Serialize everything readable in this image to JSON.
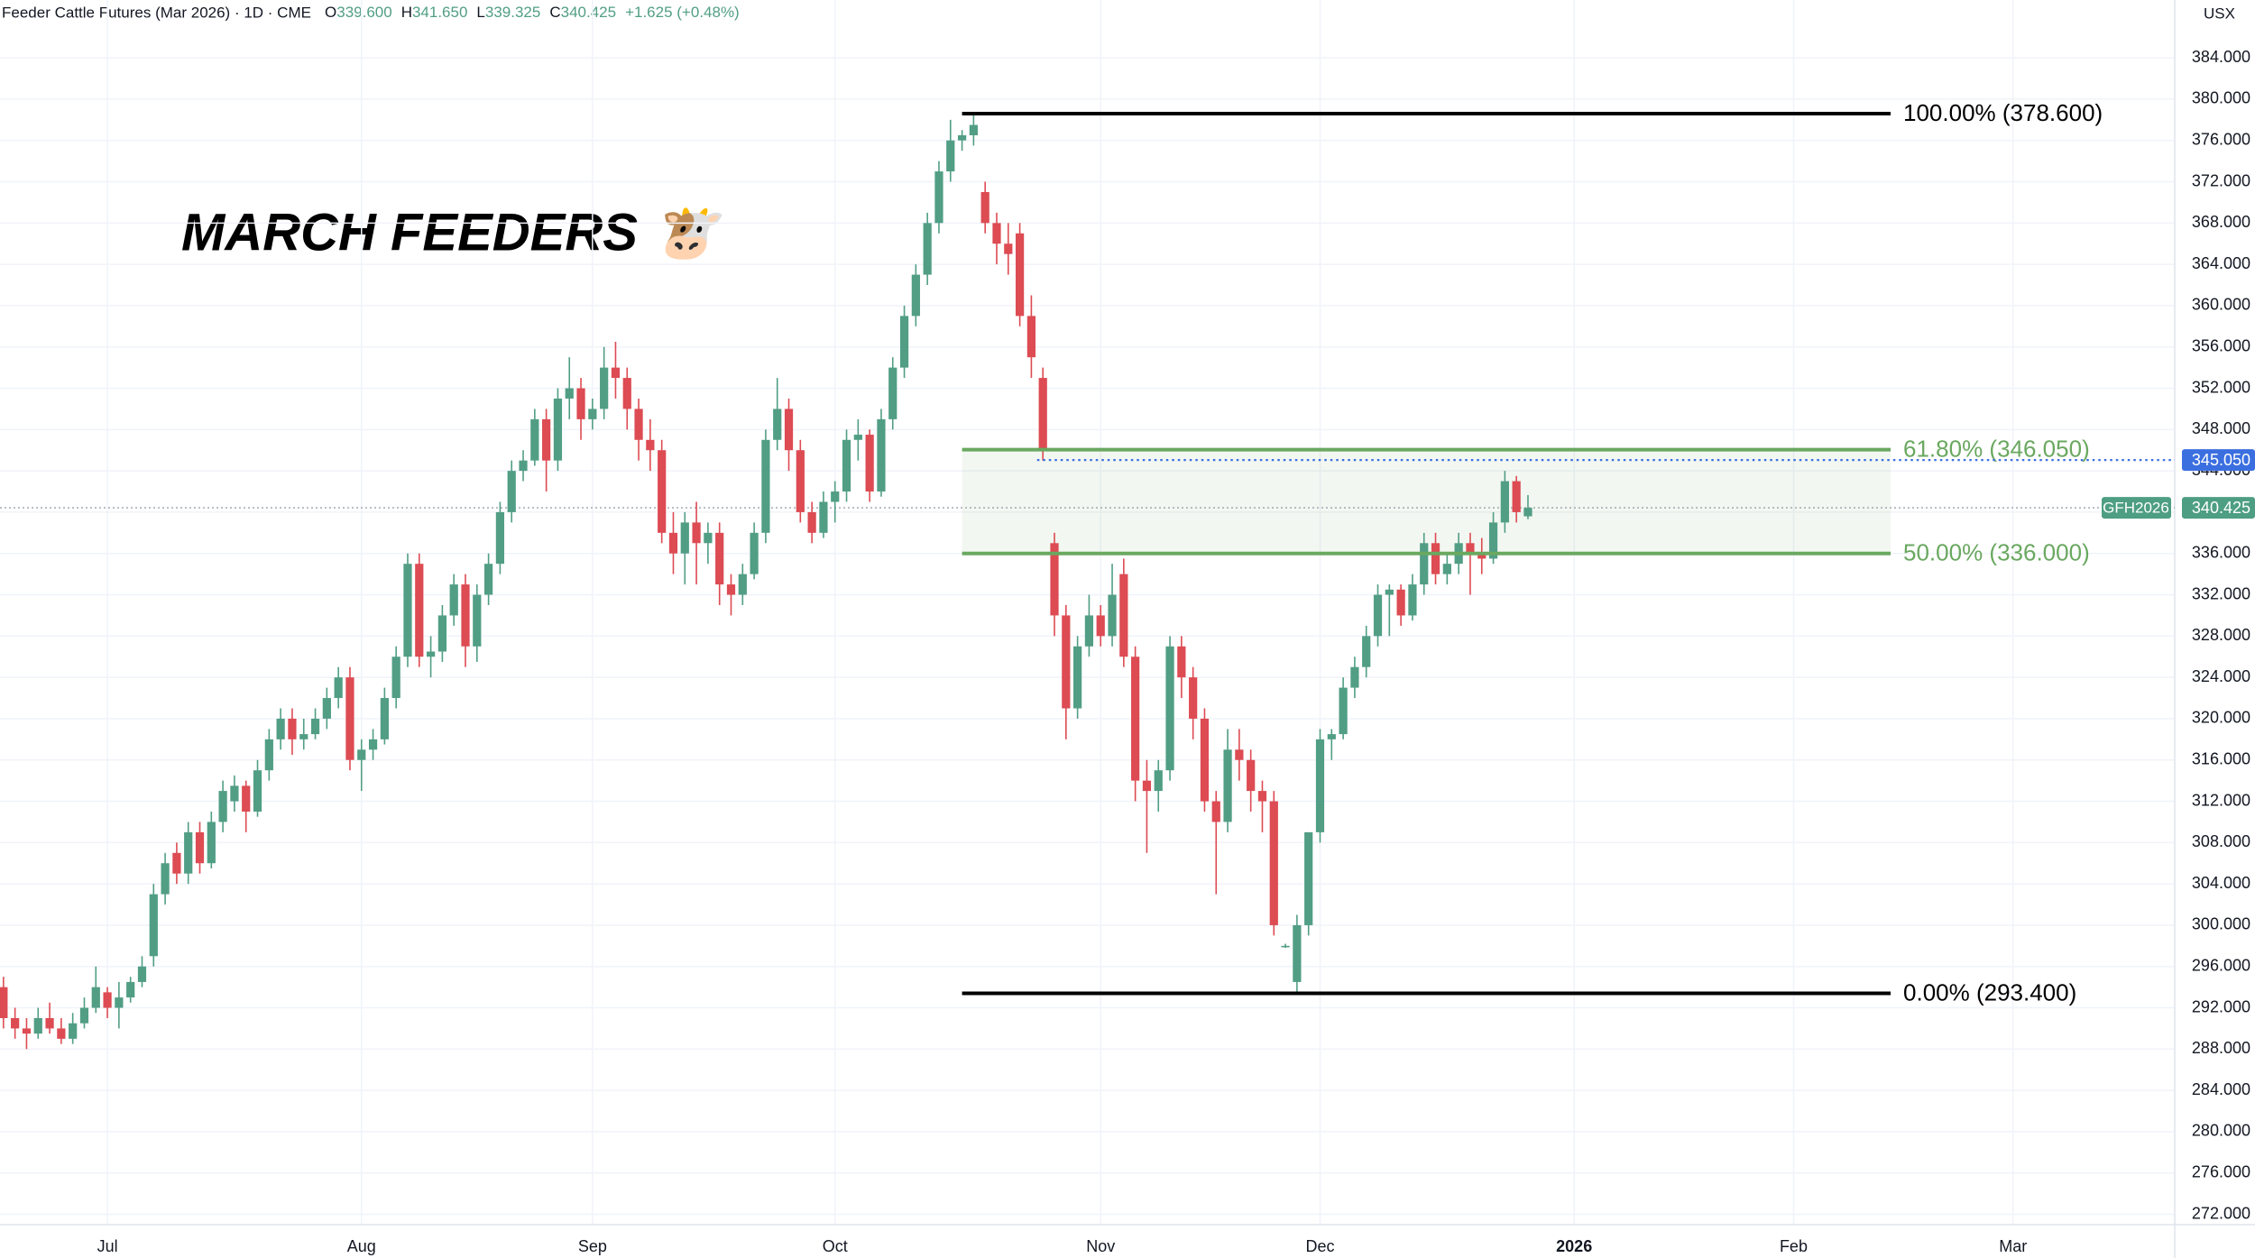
{
  "header": {
    "title": "Feeder Cattle Futures (Mar 2026) · 1D · CME",
    "ohlc": [
      {
        "key": "O",
        "text": "339.600"
      },
      {
        "key": "H",
        "text": "341.650"
      },
      {
        "key": "L",
        "text": "339.325"
      },
      {
        "key": "C",
        "text": "340.425"
      }
    ],
    "change": "+1.625 (+0.48%)",
    "currency": "USX"
  },
  "chart_data": {
    "type": "candlestick",
    "annotation": "MARCH FEEDERS 🐮",
    "symbol_label": "GFH2026",
    "up_color": "#519e85",
    "down_color": "#dd4b53",
    "grid": true,
    "ohlc": [
      [
        294,
        295,
        290,
        291
      ],
      [
        291,
        292,
        289,
        290
      ],
      [
        290,
        291,
        288,
        289.5
      ],
      [
        289.5,
        292,
        289,
        291
      ],
      [
        291,
        292.5,
        289.5,
        290
      ],
      [
        290,
        291,
        288.5,
        289
      ],
      [
        289,
        291.5,
        288.5,
        290.5
      ],
      [
        290.5,
        293,
        290,
        292
      ],
      [
        292,
        296,
        291.5,
        294
      ],
      [
        293.5,
        294,
        291,
        292
      ],
      [
        292,
        294.5,
        290,
        293
      ],
      [
        293,
        295,
        292.5,
        294.5
      ],
      [
        294.5,
        297,
        294,
        296
      ],
      [
        297,
        304,
        296,
        303
      ],
      [
        303,
        307,
        302,
        306
      ],
      [
        307,
        308,
        304,
        305
      ],
      [
        305,
        310,
        304,
        309
      ],
      [
        309,
        310,
        305,
        306
      ],
      [
        306,
        311,
        305.5,
        310
      ],
      [
        310,
        314,
        309,
        313
      ],
      [
        312,
        314.5,
        311,
        313.5
      ],
      [
        313.5,
        314,
        309,
        311
      ],
      [
        311,
        316,
        310.5,
        315
      ],
      [
        315,
        319,
        314,
        318
      ],
      [
        318,
        321,
        317,
        320
      ],
      [
        320,
        321,
        316.5,
        318
      ],
      [
        318,
        320,
        317,
        318.5
      ],
      [
        318.5,
        321,
        318,
        320
      ],
      [
        320,
        323,
        319,
        322
      ],
      [
        322,
        325,
        321,
        324
      ],
      [
        324,
        325,
        315,
        316
      ],
      [
        316,
        318,
        313,
        317
      ],
      [
        317,
        319,
        316,
        318
      ],
      [
        318,
        323,
        317.5,
        322
      ],
      [
        322,
        327,
        321,
        326
      ],
      [
        326,
        336,
        325,
        335
      ],
      [
        335,
        336,
        325,
        326
      ],
      [
        326,
        328,
        324,
        326.5
      ],
      [
        326.5,
        331,
        325.5,
        330
      ],
      [
        330,
        334,
        329,
        333
      ],
      [
        333,
        334,
        325,
        327
      ],
      [
        327,
        333,
        325.5,
        332
      ],
      [
        332,
        336,
        331,
        335
      ],
      [
        335,
        341,
        334,
        340
      ],
      [
        340,
        345,
        339,
        344
      ],
      [
        344,
        346,
        343,
        345
      ],
      [
        345,
        350,
        344.5,
        349
      ],
      [
        349,
        350,
        342,
        345
      ],
      [
        345,
        352,
        344,
        351
      ],
      [
        351,
        355,
        349,
        352
      ],
      [
        352,
        353,
        347,
        349
      ],
      [
        349,
        351,
        348,
        350
      ],
      [
        350,
        356,
        349,
        354
      ],
      [
        354,
        356.5,
        351,
        353
      ],
      [
        353,
        354,
        348,
        350
      ],
      [
        350,
        351,
        345,
        347
      ],
      [
        347,
        349,
        344,
        346
      ],
      [
        346,
        347,
        337,
        338
      ],
      [
        338,
        340,
        334,
        336
      ],
      [
        336,
        340,
        333,
        339
      ],
      [
        339,
        341,
        333,
        337
      ],
      [
        337,
        339,
        335,
        338
      ],
      [
        338,
        339,
        331,
        333
      ],
      [
        333,
        334,
        330,
        332
      ],
      [
        332,
        335,
        331,
        334
      ],
      [
        334,
        339,
        333.5,
        338
      ],
      [
        338,
        348,
        337,
        347
      ],
      [
        347,
        353,
        346,
        350
      ],
      [
        350,
        351,
        344,
        346
      ],
      [
        346,
        347,
        339,
        340
      ],
      [
        340,
        341,
        337,
        338
      ],
      [
        338,
        342,
        337.5,
        341
      ],
      [
        341,
        343,
        339,
        342
      ],
      [
        342,
        348,
        341,
        347
      ],
      [
        347,
        349,
        345,
        347.5
      ],
      [
        347.5,
        348,
        341,
        342
      ],
      [
        342,
        350,
        341.5,
        349
      ],
      [
        349,
        355,
        348,
        354
      ],
      [
        354,
        360,
        353,
        359
      ],
      [
        359,
        364,
        358,
        363
      ],
      [
        363,
        369,
        362,
        368
      ],
      [
        368,
        374,
        367,
        373
      ],
      [
        373,
        378,
        372,
        376
      ],
      [
        376,
        377,
        375,
        376.5
      ],
      [
        376.5,
        378.6,
        375.5,
        377.5
      ],
      [
        371,
        372,
        367,
        368
      ],
      [
        368,
        369,
        364,
        366
      ],
      [
        366,
        368,
        363,
        365
      ],
      [
        367,
        368,
        358,
        359
      ],
      [
        359,
        361,
        353,
        355
      ],
      [
        353,
        354,
        345,
        346
      ],
      [
        337,
        338,
        328,
        330
      ],
      [
        330,
        331,
        318,
        321
      ],
      [
        321,
        328,
        320,
        327
      ],
      [
        327,
        332,
        326,
        330
      ],
      [
        330,
        331,
        327,
        328
      ],
      [
        328,
        335,
        327,
        332
      ],
      [
        334,
        335.5,
        325,
        326
      ],
      [
        326,
        327,
        312,
        314
      ],
      [
        314,
        316,
        307,
        313
      ],
      [
        313,
        316,
        311,
        315
      ],
      [
        315,
        328,
        314,
        327
      ],
      [
        327,
        328,
        322,
        324
      ],
      [
        324,
        325,
        318,
        320
      ],
      [
        320,
        321,
        311,
        312
      ],
      [
        312,
        313,
        303,
        310
      ],
      [
        310,
        319,
        309,
        317
      ],
      [
        317,
        319,
        314,
        316
      ],
      [
        316,
        317,
        311,
        313
      ],
      [
        313,
        314,
        309,
        312
      ],
      [
        312,
        313,
        299,
        300
      ],
      [
        298,
        298.2,
        297.8,
        298
      ],
      [
        294.5,
        301,
        293.4,
        300
      ],
      [
        300,
        309,
        299,
        309
      ],
      [
        309,
        319,
        308,
        318
      ],
      [
        318,
        319,
        316,
        318.5
      ],
      [
        318.5,
        324,
        318,
        323
      ],
      [
        323,
        326,
        322,
        325
      ],
      [
        325,
        329,
        324,
        328
      ],
      [
        328,
        333,
        327,
        332
      ],
      [
        332,
        333,
        328,
        332.5
      ],
      [
        332.5,
        333,
        329,
        330
      ],
      [
        330,
        334,
        329.5,
        333
      ],
      [
        333,
        338,
        332,
        337
      ],
      [
        337,
        338,
        333,
        334
      ],
      [
        334,
        336,
        333,
        335
      ],
      [
        335,
        338,
        334,
        337
      ],
      [
        337,
        338,
        332,
        336
      ],
      [
        336,
        337.5,
        334,
        335.5
      ],
      [
        335.5,
        340,
        335,
        339
      ],
      [
        339,
        344,
        338,
        343
      ],
      [
        343,
        343.5,
        339,
        340
      ],
      [
        339.6,
        341.65,
        339.325,
        340.425
      ]
    ],
    "xlim": [
      -0.3,
      188
    ],
    "xticks": [
      {
        "value": 9,
        "label": "Jul"
      },
      {
        "value": 31,
        "label": "Aug"
      },
      {
        "value": 51,
        "label": "Sep"
      },
      {
        "value": 72,
        "label": "Oct"
      },
      {
        "value": 95,
        "label": "Nov"
      },
      {
        "value": 114,
        "label": "Dec"
      },
      {
        "value": 136,
        "label": "2026"
      },
      {
        "value": 155,
        "label": "Feb"
      },
      {
        "value": 174,
        "label": "Mar"
      }
    ],
    "ylim": [
      271,
      389.6
    ],
    "yticks": [
      {
        "value": 272,
        "label": "272.000"
      },
      {
        "value": 276,
        "label": "276.000"
      },
      {
        "value": 280,
        "label": "280.000"
      },
      {
        "value": 284,
        "label": "284.000"
      },
      {
        "value": 288,
        "label": "288.000"
      },
      {
        "value": 292,
        "label": "292.000"
      },
      {
        "value": 296,
        "label": "296.000"
      },
      {
        "value": 300,
        "label": "300.000"
      },
      {
        "value": 304,
        "label": "304.000"
      },
      {
        "value": 308,
        "label": "308.000"
      },
      {
        "value": 312,
        "label": "312.000"
      },
      {
        "value": 316,
        "label": "316.000"
      },
      {
        "value": 320,
        "label": "320.000"
      },
      {
        "value": 324,
        "label": "324.000"
      },
      {
        "value": 328,
        "label": "328.000"
      },
      {
        "value": 332,
        "label": "332.000"
      },
      {
        "value": 336,
        "label": "336.000"
      },
      {
        "value": 340,
        "label": "340.000"
      },
      {
        "value": 344,
        "label": "344.000"
      },
      {
        "value": 348,
        "label": "348.000"
      },
      {
        "value": 352,
        "label": "352.000"
      },
      {
        "value": 356,
        "label": "356.000"
      },
      {
        "value": 360,
        "label": "360.000"
      },
      {
        "value": 364,
        "label": "364.000"
      },
      {
        "value": 368,
        "label": "368.000"
      },
      {
        "value": 372,
        "label": "372.000"
      },
      {
        "value": 376,
        "label": "376.000"
      },
      {
        "value": 380,
        "label": "380.000"
      },
      {
        "value": 384,
        "label": "384.000"
      }
    ],
    "fib": {
      "x_range": [
        83,
        163.4
      ],
      "zone_fill": "rgba(106,168,96,0.09)",
      "levels": [
        {
          "value": 378.6,
          "label": "100.00% (378.600)",
          "color": "#000000"
        },
        {
          "value": 346.05,
          "label": "61.80% (346.050)",
          "color": "#6aa860"
        },
        {
          "value": 336,
          "label": "50.00% (336.000)",
          "color": "#6aa860"
        },
        {
          "value": 293.4,
          "label": "0.00% (293.400)",
          "color": "#000000"
        }
      ]
    },
    "alert_line": {
      "value": 345.05,
      "label": "345.050",
      "start": 89.5,
      "color": "#3b6fe0"
    }
  }
}
